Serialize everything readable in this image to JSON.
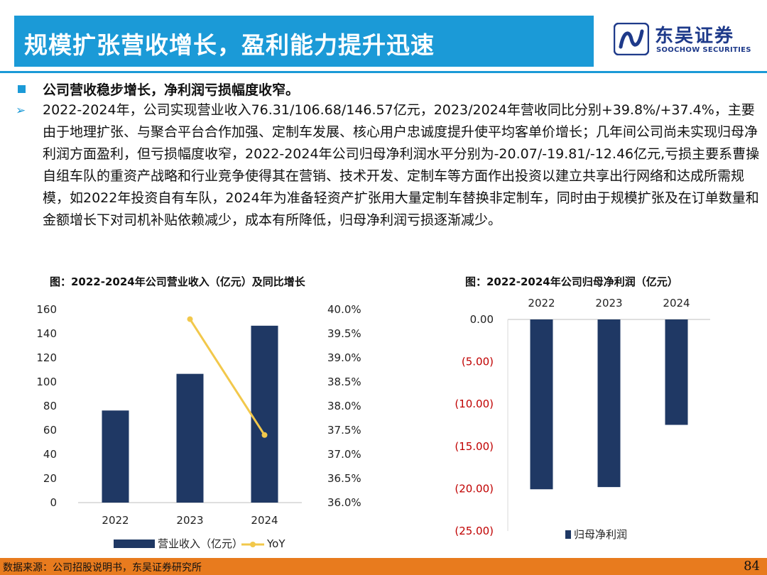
{
  "header": {
    "title": "规模扩张营收增长，盈利能力提升迅速",
    "logo_cn": "东吴证券",
    "logo_en": "SOOCHOW SECURITIES"
  },
  "summary": {
    "headline": "公司营收稳步增长，净利润亏损幅度收窄。",
    "paragraph": "2022-2024年，公司实现营业收入76.31/106.68/146.57亿元，2023/2024年营收同比分别+39.8%/+37.4%，主要由于地理扩张、与聚合平台合作加强、定制车发展、核心用户忠诚度提升使平均客单价增长；几年间公司尚未实现归母净利润方面盈利，但亏损幅度收窄，2022-2024年公司归母净利润水平分别为-20.07/-19.81/-12.46亿元,亏损主要系曹操自组车队的重资产战略和行业竞争使得其在营销、技术开发、定制车等方面作出投资以建立共享出行网络和达成所需规模，如2022年投资自有车队，2024年为准备轻资产扩张用大量定制车替换非定制车，同时由于规模扩张及在订单数量和金额增长下对司机补贴依赖减少，成本有所降低，归母净利润亏损逐渐减少。"
  },
  "chart_data": [
    {
      "type": "bar",
      "title": "图：2022-2024年公司营业收入（亿元）及同比增长",
      "categories": [
        "2022",
        "2023",
        "2024"
      ],
      "series": [
        {
          "name": "营业收入（亿元）",
          "kind": "bar",
          "axis": "left",
          "values": [
            76.31,
            106.68,
            146.57
          ],
          "color": "#1f3864"
        },
        {
          "name": "YoY",
          "kind": "line",
          "axis": "right",
          "values": [
            null,
            39.8,
            37.4
          ],
          "color": "#f2c84b"
        }
      ],
      "ylim": [
        0,
        160
      ],
      "yticks": [
        "0",
        "20",
        "40",
        "60",
        "80",
        "100",
        "120",
        "140",
        "160"
      ],
      "y2lim": [
        36.0,
        40.0
      ],
      "y2ticks": [
        "36.0%",
        "36.5%",
        "37.0%",
        "37.5%",
        "38.0%",
        "38.5%",
        "39.0%",
        "39.5%",
        "40.0%"
      ],
      "legend": "bottom"
    },
    {
      "type": "bar",
      "title": "图：2022-2024年公司归母净利润（亿元）",
      "categories": [
        "2022",
        "2023",
        "2024"
      ],
      "series": [
        {
          "name": "归母净利润",
          "values": [
            -20.07,
            -19.81,
            -12.46
          ],
          "color": "#1f3864"
        }
      ],
      "ylim": [
        -25,
        0
      ],
      "yticks": [
        "0.00",
        "(5.00)",
        "(10.00)",
        "(15.00)",
        "(20.00)",
        "(25.00)"
      ],
      "negative_color": "#c00000",
      "legend": "bottom"
    }
  ],
  "footer": {
    "source": "数据来源：公司招股说明书，东吴证券研究所",
    "page": "84"
  }
}
